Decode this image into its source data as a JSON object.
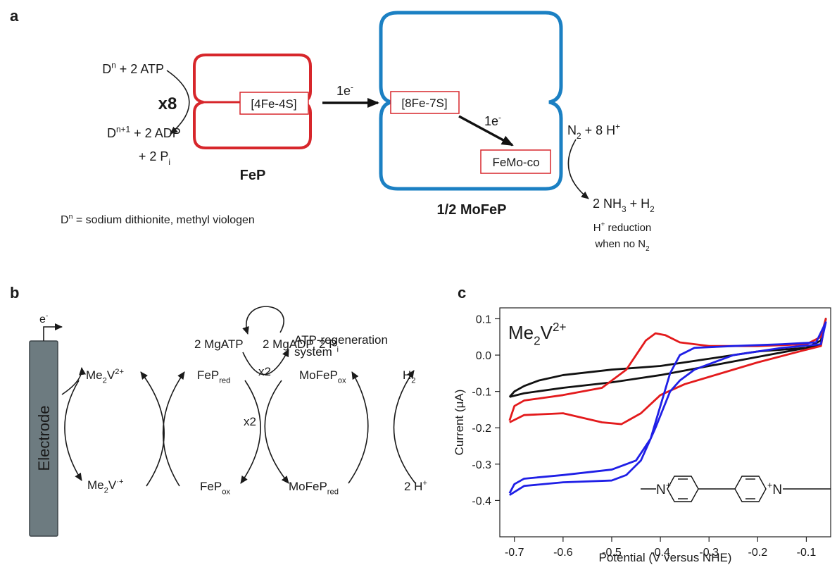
{
  "panel_a": {
    "label": "a",
    "donor_reduced": [
      {
        "text": "D"
      },
      {
        "sup": "n"
      },
      {
        "text": " + 2 ATP"
      }
    ],
    "multiplier": "x8",
    "donor_oxidized": [
      {
        "text": "D"
      },
      {
        "sup": "n+1"
      },
      {
        "text": " + 2 ADP"
      }
    ],
    "phosphate": [
      {
        "text": "+ 2 P"
      },
      {
        "sub": "i"
      }
    ],
    "fep_cluster": "[4Fe-4S]",
    "fep_label": "FeP",
    "electron_1": [
      {
        "text": "1e"
      },
      {
        "sup": "-"
      }
    ],
    "mofep_cluster": "[8Fe-7S]",
    "electron_2": [
      {
        "text": "1e"
      },
      {
        "sup": "-"
      }
    ],
    "cofactor": "FeMo-co",
    "mofep_label": "1/2 MoFeP",
    "substrate": [
      {
        "text": "N"
      },
      {
        "sub": "2"
      },
      {
        "text": " + 8 H"
      },
      {
        "sup": "+"
      }
    ],
    "product": [
      {
        "text": "2 NH"
      },
      {
        "sub": "3"
      },
      {
        "text": " + H"
      },
      {
        "sub": "2"
      }
    ],
    "note_1": [
      {
        "text": "H"
      },
      {
        "sup": "+"
      },
      {
        "text": " reduction"
      }
    ],
    "note_2": [
      {
        "text": "when no N"
      },
      {
        "sub": "2"
      }
    ],
    "footnote": [
      {
        "text": "D"
      },
      {
        "sup": "n"
      },
      {
        "text": " = sodium dithionite, methyl viologen"
      }
    ]
  },
  "panel_b": {
    "label": "b",
    "electron": [
      {
        "text": "e"
      },
      {
        "sup": "-"
      }
    ],
    "electrode": "Electrode",
    "mediator_ox": [
      {
        "text": "Me"
      },
      {
        "sub": "2"
      },
      {
        "text": "V"
      },
      {
        "sup": "2+"
      }
    ],
    "mediator_red": [
      {
        "text": "Me"
      },
      {
        "sub": "2"
      },
      {
        "text": "V"
      },
      {
        "sup": "·+"
      }
    ],
    "fep_red": [
      {
        "text": "FeP"
      },
      {
        "sub": "red"
      }
    ],
    "fep_ox": [
      {
        "text": "FeP"
      },
      {
        "sub": "ox"
      }
    ],
    "atp": "2 MgATP",
    "adp": [
      {
        "text": "2 MgADP, 2 P"
      },
      {
        "sub": "i"
      }
    ],
    "regeneration_1": "ATP-regeneration",
    "regeneration_2": "system",
    "stoich_upper": "x2",
    "stoich_lower": "x2",
    "mofep_ox": [
      {
        "text": "MoFeP"
      },
      {
        "sub": "ox"
      }
    ],
    "mofep_red": [
      {
        "text": "MoFeP"
      },
      {
        "sub": "red"
      }
    ],
    "h2": [
      {
        "text": "H"
      },
      {
        "sub": "2"
      }
    ],
    "protons": [
      {
        "text": "2 H"
      },
      {
        "sup": "+"
      }
    ]
  },
  "chart_data": {
    "type": "line",
    "label": "c",
    "annotation": [
      {
        "text": "Me"
      },
      {
        "sub": "2"
      },
      {
        "text": "V"
      },
      {
        "sup": "2+"
      }
    ],
    "x_label": "Potential (V versus NHE)",
    "y_label": "Current (μA)",
    "xlim": [
      -0.73,
      -0.05
    ],
    "ylim": [
      -0.5,
      0.13
    ],
    "xticks": [
      -0.7,
      -0.6,
      -0.5,
      -0.4,
      -0.3,
      -0.2,
      -0.1
    ],
    "yticks": [
      0.1,
      {
        "value": 0,
        "label": "0.0"
      },
      -0.1,
      -0.2,
      -0.3,
      -0.4
    ],
    "structure_atoms": [
      [
        {
          "text": "N"
        },
        {
          "sup": "+"
        }
      ],
      [
        {
          "sup": "+"
        },
        {
          "text": "N"
        }
      ]
    ],
    "series": [
      {
        "color": "#111111",
        "x": [
          -0.71,
          -0.7,
          -0.68,
          -0.65,
          -0.6,
          -0.5,
          -0.4,
          -0.3,
          -0.2,
          -0.1,
          -0.07,
          -0.06,
          -0.07,
          -0.1,
          -0.2,
          -0.3,
          -0.4,
          -0.5,
          -0.6,
          -0.68,
          -0.71
        ],
        "values": [
          -0.115,
          -0.1,
          -0.085,
          -0.07,
          -0.055,
          -0.04,
          -0.03,
          -0.01,
          0.01,
          0.02,
          0.04,
          0.1,
          0.03,
          0.02,
          -0.005,
          -0.03,
          -0.055,
          -0.075,
          -0.09,
          -0.105,
          -0.115
        ]
      },
      {
        "color": "#e31a1c",
        "x": [
          -0.71,
          -0.7,
          -0.68,
          -0.6,
          -0.52,
          -0.47,
          -0.43,
          -0.41,
          -0.39,
          -0.36,
          -0.3,
          -0.2,
          -0.1,
          -0.07,
          -0.06,
          -0.07,
          -0.1,
          -0.2,
          -0.3,
          -0.35,
          -0.4,
          -0.44,
          -0.48,
          -0.52,
          -0.6,
          -0.68,
          -0.71
        ],
        "values": [
          -0.18,
          -0.14,
          -0.125,
          -0.11,
          -0.09,
          -0.04,
          0.04,
          0.06,
          0.055,
          0.035,
          0.025,
          0.025,
          0.03,
          0.05,
          0.1,
          0.025,
          0.015,
          -0.02,
          -0.06,
          -0.08,
          -0.11,
          -0.16,
          -0.19,
          -0.185,
          -0.16,
          -0.165,
          -0.185
        ]
      },
      {
        "color": "#1f1fe6",
        "x": [
          -0.71,
          -0.7,
          -0.68,
          -0.6,
          -0.5,
          -0.45,
          -0.42,
          -0.4,
          -0.38,
          -0.36,
          -0.33,
          -0.25,
          -0.15,
          -0.08,
          -0.06,
          -0.07,
          -0.15,
          -0.25,
          -0.33,
          -0.36,
          -0.38,
          -0.41,
          -0.44,
          -0.47,
          -0.5,
          -0.6,
          -0.68,
          -0.71
        ],
        "values": [
          -0.38,
          -0.355,
          -0.34,
          -0.33,
          -0.315,
          -0.29,
          -0.23,
          -0.14,
          -0.05,
          0.0,
          0.02,
          0.025,
          0.03,
          0.035,
          0.09,
          0.03,
          0.02,
          0.0,
          -0.04,
          -0.07,
          -0.1,
          -0.2,
          -0.29,
          -0.33,
          -0.345,
          -0.35,
          -0.36,
          -0.385
        ]
      }
    ]
  }
}
